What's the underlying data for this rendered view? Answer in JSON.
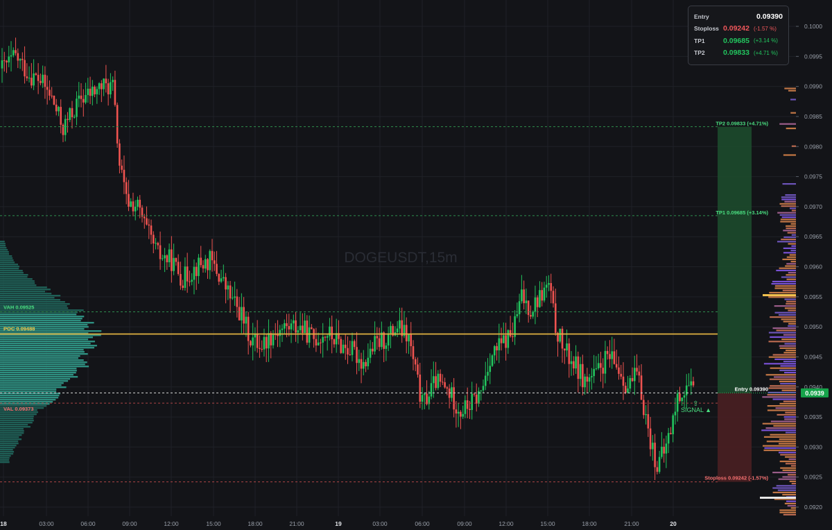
{
  "chart_data": {
    "type": "candlestick",
    "symbol_watermark": "DOGEUSDT,15m",
    "price_axis": {
      "min": 0.0919,
      "max": 0.1003,
      "ticks": [
        "0.1000",
        "0.0995",
        "0.0990",
        "0.0985",
        "0.0980",
        "0.0975",
        "0.0970",
        "0.0965",
        "0.0960",
        "0.0955",
        "0.0950",
        "0.0945",
        "0.0940",
        "0.0935",
        "0.0930",
        "0.0925",
        "0.0920"
      ]
    },
    "time_axis": {
      "ticks": [
        "18",
        "03:00",
        "06:00",
        "09:00",
        "12:00",
        "15:00",
        "18:00",
        "21:00",
        "19",
        "03:00",
        "06:00",
        "09:00",
        "12:00",
        "15:00",
        "18:00",
        "21:00",
        "20"
      ]
    },
    "current_price_label": "0.0939",
    "levels": {
      "tp2": {
        "price": 0.09833,
        "label": "TP2 0.09833 (+4.71%)"
      },
      "tp1": {
        "price": 0.09685,
        "label": "TP1 0.09685 (+3.14%)"
      },
      "vah": {
        "price": 0.09525,
        "label": "VAH  0.09525"
      },
      "poc": {
        "price": 0.09488,
        "label": "POC  0.09488"
      },
      "entry": {
        "price": 0.0939,
        "label": "Entry 0.09390"
      },
      "val": {
        "price": 0.09373,
        "label": "VAL  0.09373"
      },
      "stop": {
        "price": 0.09242,
        "label": "Stoploss 0.09242 (-1.57%)"
      }
    },
    "signal_label": "SIGNAL ▲",
    "path_anchors": [
      [
        0,
        0.0993
      ],
      [
        6,
        0.0995
      ],
      [
        12,
        0.0992
      ],
      [
        17,
        0.0991
      ],
      [
        22,
        0.0988
      ],
      [
        27,
        0.0983
      ],
      [
        30,
        0.0985
      ],
      [
        35,
        0.0988
      ],
      [
        40,
        0.0989
      ],
      [
        44,
        0.099
      ],
      [
        49,
        0.099
      ],
      [
        52,
        0.0977
      ],
      [
        55,
        0.0971
      ],
      [
        60,
        0.097
      ],
      [
        64,
        0.0966
      ],
      [
        69,
        0.0962
      ],
      [
        75,
        0.0961
      ],
      [
        80,
        0.0958
      ],
      [
        86,
        0.096
      ],
      [
        92,
        0.0961
      ],
      [
        97,
        0.0958
      ],
      [
        101,
        0.0955
      ],
      [
        106,
        0.0952
      ],
      [
        110,
        0.0948
      ],
      [
        115,
        0.0947
      ],
      [
        120,
        0.0949
      ],
      [
        126,
        0.095
      ],
      [
        132,
        0.095
      ],
      [
        138,
        0.0948
      ],
      [
        144,
        0.0949
      ],
      [
        150,
        0.0947
      ],
      [
        155,
        0.0946
      ],
      [
        160,
        0.0944
      ],
      [
        165,
        0.0947
      ],
      [
        170,
        0.0948
      ],
      [
        175,
        0.095
      ],
      [
        180,
        0.0948
      ],
      [
        186,
        0.0937
      ],
      [
        192,
        0.0941
      ],
      [
        198,
        0.0939
      ],
      [
        203,
        0.0936
      ],
      [
        207,
        0.0937
      ],
      [
        212,
        0.0939
      ],
      [
        216,
        0.0945
      ],
      [
        221,
        0.0947
      ],
      [
        226,
        0.0949
      ],
      [
        230,
        0.0955
      ],
      [
        234,
        0.0953
      ],
      [
        238,
        0.0955
      ],
      [
        242,
        0.0957
      ],
      [
        245,
        0.095
      ],
      [
        249,
        0.0946
      ],
      [
        253,
        0.0944
      ],
      [
        258,
        0.0941
      ],
      [
        263,
        0.0942
      ],
      [
        268,
        0.0945
      ],
      [
        273,
        0.0943
      ],
      [
        277,
        0.094
      ],
      [
        281,
        0.0942
      ],
      [
        284,
        0.0937
      ],
      [
        287,
        0.0931
      ],
      [
        290,
        0.0927
      ],
      [
        293,
        0.0929
      ],
      [
        296,
        0.0933
      ],
      [
        299,
        0.0938
      ],
      [
        303,
        0.094
      ],
      [
        306,
        0.0939
      ]
    ]
  }
}
